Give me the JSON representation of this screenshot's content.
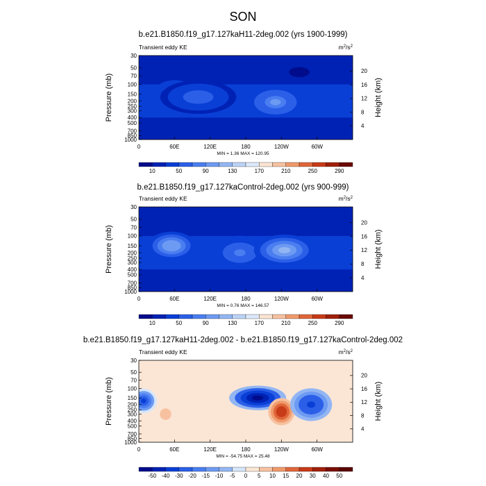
{
  "figure": {
    "title": "SON"
  },
  "chart_data": [
    {
      "type": "heatmap",
      "title": "b.e21.B1850.f19_g17.127kaH11-2deg.002 (yrs 1900-1999)",
      "left_label": "Transient eddy KE",
      "units_base": "m",
      "units_exp": "2",
      "units_per": "/s",
      "ylabel": "Pressure (mb)",
      "ylabel_right": "Height (km)",
      "xlabel": "",
      "xlim": [
        0,
        360
      ],
      "pressure_ticks": [
        30,
        50,
        70,
        100,
        150,
        200,
        250,
        300,
        400,
        500,
        700,
        850,
        1000
      ],
      "pressure_tick_labels": [
        "30",
        "50",
        "70",
        "100",
        "150",
        "200",
        "250",
        "300",
        "400",
        "500",
        "700",
        "850",
        "1000"
      ],
      "height_ticks": [
        20,
        16,
        12,
        8,
        4
      ],
      "height_tick_labels": [
        "20",
        "16",
        "12",
        "8",
        "4"
      ],
      "lon_ticks": [
        0,
        60,
        120,
        180,
        240,
        300
      ],
      "lon_tick_labels": [
        "0",
        "60E",
        "120E",
        "180",
        "120W",
        "60W"
      ],
      "stats_text": "MIN =  1.36  MAX = 120.95",
      "min": 1.36,
      "max": 120.95,
      "colorbar": {
        "levels": [
          10,
          30,
          50,
          70,
          90,
          110,
          130,
          150,
          170,
          190,
          210,
          230,
          250,
          270,
          290
        ],
        "label_levels": [
          "10",
          "50",
          "90",
          "130",
          "170",
          "210",
          "250",
          "290"
        ],
        "colors": [
          "#000c8b",
          "#0022b4",
          "#0a3fd6",
          "#2b5fe8",
          "#4a7ef0",
          "#6d9af2",
          "#93b6f3",
          "#bcd3f6",
          "#dde9fb",
          "#fbe4d2",
          "#f7c1a0",
          "#f09a6b",
          "#e0663a",
          "#c83b18",
          "#a0200a",
          "#6b0a02"
        ]
      },
      "blobs": [
        {
          "lon": 60,
          "p": 150,
          "value": 90,
          "width": 22,
          "height": 0.5
        },
        {
          "lon": 100,
          "p": 170,
          "value": 60,
          "width": 40,
          "height": 0.6
        },
        {
          "lon": 230,
          "p": 210,
          "value": 100,
          "width": 28,
          "height": 0.55
        },
        {
          "lon": 270,
          "p": 60,
          "value": 1.36,
          "width": 18,
          "height": 0.3
        }
      ]
    },
    {
      "type": "heatmap",
      "title": "b.e21.B1850.f19_g17.127kaControl-2deg.002 (yrs 900-999)",
      "left_label": "Transient eddy KE",
      "units_base": "m",
      "units_exp": "2",
      "units_per": "/s",
      "ylabel": "Pressure (mb)",
      "ylabel_right": "Height (km)",
      "xlabel": "",
      "xlim": [
        0,
        360
      ],
      "pressure_ticks": [
        30,
        50,
        70,
        100,
        150,
        200,
        250,
        300,
        400,
        500,
        700,
        850,
        1000
      ],
      "pressure_tick_labels": [
        "30",
        "50",
        "70",
        "100",
        "150",
        "200",
        "250",
        "300",
        "400",
        "500",
        "700",
        "850",
        "1000"
      ],
      "height_ticks": [
        20,
        16,
        12,
        8,
        4
      ],
      "height_tick_labels": [
        "20",
        "16",
        "12",
        "8",
        "4"
      ],
      "lon_ticks": [
        0,
        60,
        120,
        180,
        240,
        300
      ],
      "lon_tick_labels": [
        "0",
        "60E",
        "120E",
        "180",
        "120W",
        "60W"
      ],
      "stats_text": "MIN =  0.76  MAX = 146.57",
      "min": 0.76,
      "max": 146.57,
      "colorbar": {
        "levels": [
          10,
          30,
          50,
          70,
          90,
          110,
          130,
          150,
          170,
          190,
          210,
          230,
          250,
          270,
          290
        ],
        "label_levels": [
          "10",
          "50",
          "90",
          "130",
          "170",
          "210",
          "250",
          "290"
        ],
        "colors": [
          "#000c8b",
          "#0022b4",
          "#0a3fd6",
          "#2b5fe8",
          "#4a7ef0",
          "#6d9af2",
          "#93b6f3",
          "#bcd3f6",
          "#dde9fb",
          "#fbe4d2",
          "#f7c1a0",
          "#f09a6b",
          "#e0663a",
          "#c83b18",
          "#a0200a",
          "#6b0a02"
        ]
      },
      "blobs": [
        {
          "lon": 55,
          "p": 150,
          "value": 110,
          "width": 25,
          "height": 0.5
        },
        {
          "lon": 170,
          "p": 200,
          "value": 80,
          "width": 30,
          "height": 0.6
        },
        {
          "lon": 245,
          "p": 180,
          "value": 120,
          "width": 32,
          "height": 0.55
        }
      ]
    },
    {
      "type": "heatmap",
      "title": "b.e21.B1850.f19_g17.127kaH11-2deg.002 - b.e21.B1850.f19_g17.127kaControl-2deg.002",
      "left_label": "Transient eddy KE",
      "units_base": "m",
      "units_exp": "2",
      "units_per": "/s",
      "ylabel": "Pressure (mb)",
      "ylabel_right": "Height (km)",
      "xlabel": "",
      "xlim": [
        0,
        360
      ],
      "pressure_ticks": [
        30,
        50,
        70,
        100,
        150,
        200,
        250,
        300,
        400,
        500,
        700,
        850,
        1000
      ],
      "pressure_tick_labels": [
        "30",
        "50",
        "70",
        "100",
        "150",
        "200",
        "250",
        "300",
        "400",
        "500",
        "700",
        "850",
        "1000"
      ],
      "height_ticks": [
        20,
        16,
        12,
        8,
        4
      ],
      "height_tick_labels": [
        "20",
        "16",
        "12",
        "8",
        "4"
      ],
      "lon_ticks": [
        0,
        60,
        120,
        180,
        240,
        300
      ],
      "lon_tick_labels": [
        "0",
        "60E",
        "120E",
        "180",
        "120W",
        "60W"
      ],
      "stats_text": "MIN = -54.75  MAX =  25.48",
      "min": -54.75,
      "max": 25.48,
      "colorbar": {
        "levels": [
          -50,
          -40,
          -30,
          -20,
          -15,
          -10,
          -5,
          0,
          5,
          10,
          15,
          20,
          30,
          40,
          50
        ],
        "label_levels": [
          "-50",
          "-40",
          "-30",
          "-20",
          "-15",
          "-10",
          "-5",
          "0",
          "5",
          "10",
          "15",
          "20",
          "30",
          "40",
          "50"
        ],
        "colors": [
          "#000c8b",
          "#0022b4",
          "#0a3fd6",
          "#2b5fe8",
          "#4a7ef0",
          "#6d9af2",
          "#93b6f3",
          "#d6e6fa",
          "#fbe6d6",
          "#f7c1a0",
          "#f09a6b",
          "#e0663a",
          "#c83b18",
          "#a0200a",
          "#7a0e04",
          "#5a0500"
        ]
      },
      "blobs": [
        {
          "lon": 8,
          "p": 170,
          "value": -30,
          "width": 14,
          "height": 0.45
        },
        {
          "lon": 200,
          "p": 150,
          "value": -54.75,
          "width": 30,
          "height": 0.45
        },
        {
          "lon": 240,
          "p": 270,
          "value": 25.48,
          "width": 14,
          "height": 0.5
        },
        {
          "lon": 290,
          "p": 200,
          "value": -35,
          "width": 22,
          "height": 0.6
        },
        {
          "lon": 45,
          "p": 300,
          "value": 8,
          "width": 10,
          "height": 0.35
        }
      ]
    }
  ]
}
